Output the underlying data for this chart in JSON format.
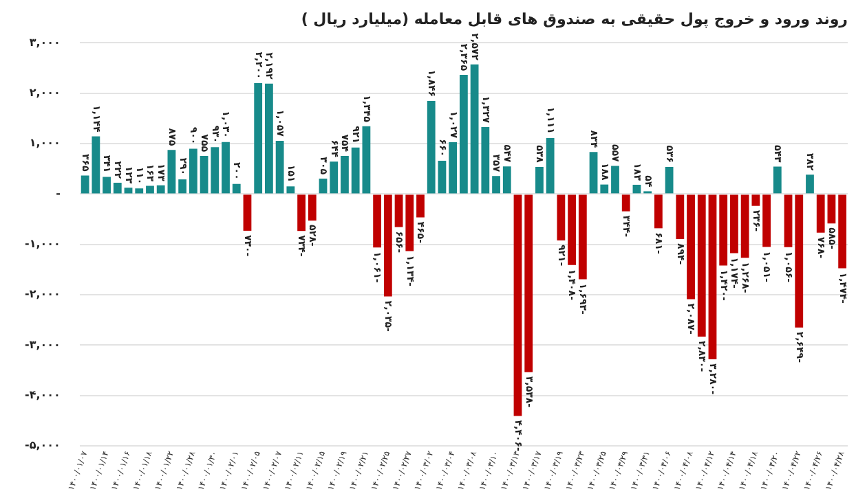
{
  "chart_data": {
    "type": "bar",
    "title": "روند ورود و خروج پول حقیقی به صندوق های قابل معامله (میلیارد ریال )",
    "categories": [
      "۱۴۰۰/۰۱/۰۷",
      null,
      "۱۴۰۰/۰۱/۱۴",
      null,
      "۱۴۰۰/۰۱/۱۶",
      null,
      "۱۴۰۰/۰۱/۱۸",
      null,
      "۱۴۰۰/۰۱/۲۲",
      null,
      "۱۴۰۰/۰۱/۲۸",
      null,
      "۱۴۰۰/۰۱/۳۰",
      null,
      "۱۴۰۰/۰۲/۰۱",
      null,
      "۱۴۰۰/۰۲/۰۵",
      null,
      "۱۴۰۰/۰۲/۰۷",
      null,
      "۱۴۰۰/۰۲/۱۱",
      null,
      "۱۴۰۰/۰۲/۱۵",
      null,
      "۱۴۰۰/۰۲/۱۹",
      null,
      "۱۴۰۰/۰۲/۲۱",
      null,
      "۱۴۰۰/۰۲/۲۵",
      null,
      "۱۴۰۰/۰۲/۲۷",
      null,
      "۱۴۰۰/۰۳/۰۲",
      null,
      "۱۴۰۰/۰۳/۰۴",
      null,
      "۱۴۰۰/۰۳/۰۸",
      null,
      "۱۴۰۰/۰۳/۱۰",
      null,
      "۱۴۰۰/۰۳/۱۳",
      null,
      "۱۴۰۰/۰۳/۱۷",
      null,
      "۱۴۰۰/۰۳/۱۹",
      null,
      "۱۴۰۰/۰۳/۲۳",
      null,
      "۱۴۰۰/۰۳/۲۵",
      null,
      "۱۴۰۰/۰۳/۲۹",
      null,
      "۱۴۰۰/۰۳/۳۱",
      null,
      "۱۴۰۰/۰۴/۰۶",
      null,
      "۱۴۰۰/۰۴/۰۸",
      null,
      "۱۴۰۰/۰۴/۱۲",
      null,
      "۱۴۰۰/۰۴/۱۴",
      null,
      "۱۴۰۰/۰۴/۱۸",
      null,
      "۱۴۰۰/۰۴/۲۰",
      null,
      "۱۴۰۰/۰۴/۲۲",
      null,
      "۱۴۰۰/۰۴/۲۶",
      null,
      "۱۴۰۰/۰۴/۲۸"
    ],
    "values": [
      365,
      1144,
      341,
      222,
      123,
      110,
      163,
      173,
      875,
      290,
      900,
      755,
      930,
      1030,
      200,
      -730,
      2200,
      2192,
      1057,
      151,
      -734,
      -528,
      305,
      644,
      754,
      921,
      1345,
      -1061,
      -2035,
      -656,
      -1134,
      -465,
      1846,
      660,
      1027,
      2365,
      2572,
      1327,
      357,
      547,
      -4406,
      -3538,
      538,
      1111,
      -921,
      -1408,
      -1693,
      834,
      188,
      557,
      -344,
      183,
      54,
      -681,
      536,
      -894,
      -2087,
      -2830,
      -3280,
      -1420,
      -1174,
      -1268,
      -236,
      -1051,
      543,
      -1056,
      -2649,
      382,
      -768,
      -585,
      -1474
    ],
    "value_labels": [
      "۳۶۵",
      "۱,۱۴۴",
      "۳۴۱",
      "۲۲۲",
      "۱۲۳",
      "۱۱۰",
      "۱۶۳",
      "۱۷۳",
      "۸۷۵",
      "۲۹۰",
      "۹۰۰",
      "۷۵۵",
      "۹۳۰",
      "۱,۰۳۰",
      "۲۰۰",
      "-۷۳۰",
      "۲,۲۰۰",
      "۲,۱۹۲",
      "۱,۰۵۷",
      "۱۵۱",
      "-۷۳۴",
      "-۵۲۸",
      "۳۰۵",
      "۶۴۴",
      "۷۵۴",
      "۹۲۱",
      "۱,۳۴۵",
      "-۱,۰۶۱",
      "-۲,۰۳۵",
      "-۶۵۶",
      "-۱,۱۳۴",
      "-۴۶۵",
      "۱,۸۴۶",
      "۶۶۰",
      "۱,۰۲۷",
      "۲,۳۶۵",
      "۲,۵۷۲",
      "۱,۳۲۷",
      "۳۵۷",
      "۵۴۷",
      "-۴,۴۰۶",
      "-۳,۵۳۸",
      "۵۳۸",
      "۱,۱۱۱",
      "-۹۲۱",
      "-۱,۴۰۸",
      "-۱,۶۹۳",
      "۸۳۴",
      "۱۸۸",
      "۵۵۷",
      "-۳۴۴",
      "۱۸۳",
      "۵۴",
      "-۶۸۱",
      "۵۳۶",
      "-۸۹۴",
      "-۲,۰۸۷",
      "-۲,۸۳۰",
      "-۳,۲۸۰",
      "-۱,۴۲۰",
      "-۱,۱۷۴",
      "-۱,۲۶۸",
      "-۲۳۶",
      "-۱,۰۵۱",
      "۵۴۳",
      "-۱,۰۵۶",
      "-۲,۶۴۹",
      "۳۸۲",
      "-۷۶۸",
      "-۵۸۵",
      "-۱,۴۷۴"
    ],
    "colors": [
      "#178a8a",
      "#178a8a",
      "#178a8a",
      "#178a8a",
      "#178a8a",
      "#178a8a",
      "#178a8a",
      "#178a8a",
      "#178a8a",
      "#178a8a",
      "#178a8a",
      "#178a8a",
      "#178a8a",
      "#178a8a",
      "#178a8a",
      "#c00000",
      "#178a8a",
      "#178a8a",
      "#178a8a",
      "#178a8a",
      "#c00000",
      "#c00000",
      "#178a8a",
      "#178a8a",
      "#178a8a",
      "#178a8a",
      "#178a8a",
      "#c00000",
      "#c00000",
      "#c00000",
      "#c00000",
      "#c00000",
      "#178a8a",
      "#178a8a",
      "#178a8a",
      "#178a8a",
      "#178a8a",
      "#178a8a",
      "#178a8a",
      "#178a8a",
      "#c00000",
      "#c00000",
      "#178a8a",
      "#178a8a",
      "#c00000",
      "#c00000",
      "#c00000",
      "#178a8a",
      "#178a8a",
      "#178a8a",
      "#c00000",
      "#178a8a",
      "#178a8a",
      "#c00000",
      "#178a8a",
      "#c00000",
      "#c00000",
      "#c00000",
      "#c00000",
      "#c00000",
      "#c00000",
      "#c00000",
      "#c00000",
      "#c00000",
      "#178a8a",
      "#c00000",
      "#c00000",
      "#178a8a",
      "#c00000",
      "#c00000",
      "#c00000"
    ],
    "ylim": [
      -5000,
      3000
    ],
    "yticks": [
      {
        "value": -5000,
        "label": "-۵,۰۰۰"
      },
      {
        "value": -4000,
        "label": "-۴,۰۰۰"
      },
      {
        "value": -3000,
        "label": "-۳,۰۰۰"
      },
      {
        "value": -2000,
        "label": "-۲,۰۰۰"
      },
      {
        "value": -1000,
        "label": "-۱,۰۰۰"
      },
      {
        "value": 0,
        "label": "-"
      },
      {
        "value": 1000,
        "label": "۱,۰۰۰"
      },
      {
        "value": 2000,
        "label": "۲,۰۰۰"
      },
      {
        "value": 3000,
        "label": "۳,۰۰۰"
      }
    ],
    "grid": "y",
    "legend": false
  }
}
